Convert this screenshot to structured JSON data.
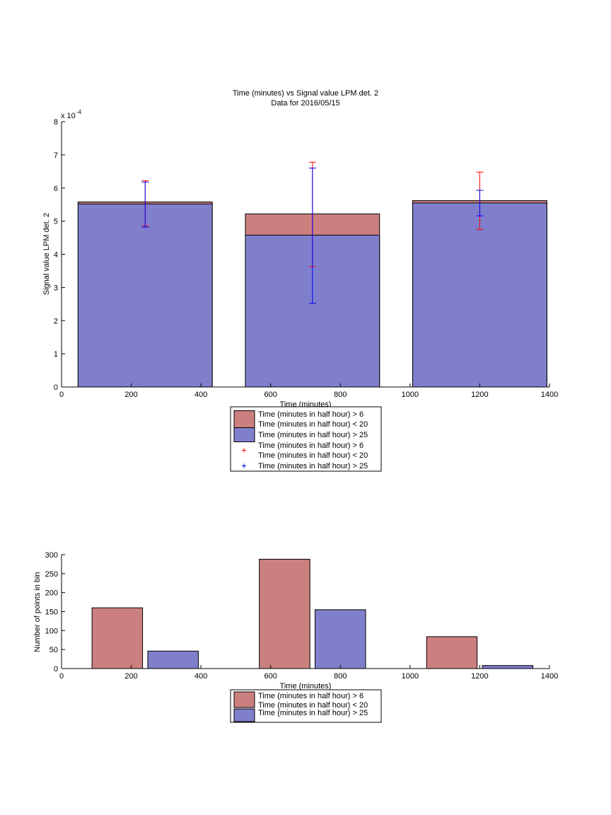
{
  "chart_data": [
    {
      "type": "bar",
      "title": "Time (minutes) vs Signal value LPM det. 2",
      "subtitle": "Data for 2016/05/15",
      "xlabel": "Time (minutes)",
      "ylabel": "Signal value LPM det. 2",
      "y_exponent_label": "x 10",
      "y_exponent_power": "-4",
      "xlim": [
        0,
        1400
      ],
      "ylim": [
        0,
        8
      ],
      "x_ticks": [
        "0",
        "200",
        "400",
        "600",
        "800",
        "1000",
        "1200",
        "1400"
      ],
      "y_ticks": [
        "0",
        "1",
        "2",
        "3",
        "4",
        "5",
        "6",
        "7",
        "8"
      ],
      "grid": false,
      "legend_position": "below",
      "stacked_overlay": true,
      "categories_x": [
        240,
        720,
        1200
      ],
      "bar_width": 385,
      "series": [
        {
          "name": "Time (minutes in half hour) > 6\nTime (minutes in half hour) < 20",
          "color": "#cc7f7f",
          "values": [
            5.58,
            5.22,
            5.62
          ],
          "errorbars": [
            {
              "x": 240,
              "low": 4.86,
              "high": 6.22
            },
            {
              "x": 720,
              "low": 3.63,
              "high": 6.78
            },
            {
              "x": 1200,
              "low": 4.75,
              "high": 6.48
            }
          ],
          "error_color": "#ff0000"
        },
        {
          "name": "Time (minutes in half hour) > 25",
          "color": "#7f7fcc",
          "values": [
            5.52,
            4.58,
            5.55
          ],
          "errorbars": [
            {
              "x": 240,
              "low": 4.82,
              "high": 6.18
            },
            {
              "x": 720,
              "low": 2.52,
              "high": 6.6
            },
            {
              "x": 1200,
              "low": 5.16,
              "high": 5.93
            }
          ],
          "error_color": "#0000ff"
        }
      ],
      "legend": [
        {
          "kind": "patch",
          "color": "#cc7f7f",
          "lines": [
            "Time (minutes in half hour) > 6",
            "Time (minutes in half hour) < 20"
          ]
        },
        {
          "kind": "patch",
          "color": "#7f7fcc",
          "lines": [
            "Time (minutes in half hour) > 25"
          ]
        },
        {
          "kind": "marker",
          "color": "#ff0000",
          "lines": [
            "Time (minutes in half hour) > 6",
            "Time (minutes in half hour) < 20"
          ]
        },
        {
          "kind": "marker",
          "color": "#0000ff",
          "lines": [
            "Time (minutes in half hour) > 25"
          ]
        }
      ]
    },
    {
      "type": "bar",
      "title": "",
      "xlabel": "Time (minutes)",
      "ylabel": "Number of points in bin",
      "xlim": [
        0,
        1400
      ],
      "ylim": [
        0,
        300
      ],
      "x_ticks": [
        "0",
        "200",
        "400",
        "600",
        "800",
        "1000",
        "1200",
        "1400"
      ],
      "y_ticks": [
        "0",
        "50",
        "100",
        "150",
        "200",
        "250",
        "300"
      ],
      "grid": false,
      "legend_position": "below",
      "bar_width": 145,
      "series": [
        {
          "name": "Time (minutes in half hour) > 6\nTime (minutes in half hour) < 20",
          "color": "#cc7f7f",
          "x": [
            160,
            640,
            1120
          ],
          "values": [
            160,
            288,
            84
          ]
        },
        {
          "name": "Time (minutes in half hour) > 25",
          "color": "#7f7fcc",
          "x": [
            320,
            800,
            1280
          ],
          "values": [
            46,
            155,
            8
          ]
        }
      ],
      "legend": [
        {
          "kind": "patch",
          "color": "#cc7f7f",
          "lines": [
            "Time (minutes in half hour) > 6",
            "Time (minutes in half hour) < 20"
          ]
        },
        {
          "kind": "patch",
          "color": "#7f7fcc",
          "lines": [
            "Time (minutes in half hour) > 25"
          ]
        }
      ]
    }
  ]
}
